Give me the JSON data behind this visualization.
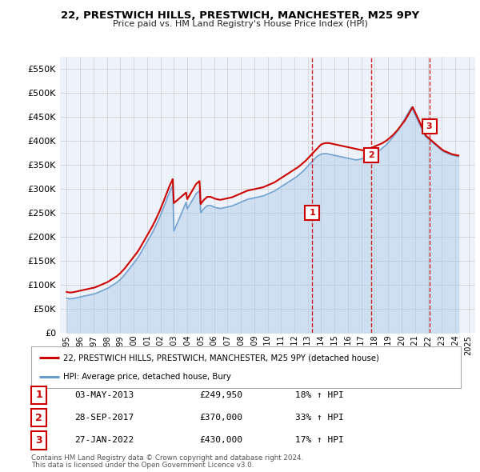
{
  "title": "22, PRESTWICH HILLS, PRESTWICH, MANCHESTER, M25 9PY",
  "subtitle": "Price paid vs. HM Land Registry's House Price Index (HPI)",
  "legend_line1": "22, PRESTWICH HILLS, PRESTWICH, MANCHESTER, M25 9PY (detached house)",
  "legend_line2": "HPI: Average price, detached house, Bury",
  "footer1": "Contains HM Land Registry data © Crown copyright and database right 2024.",
  "footer2": "This data is licensed under the Open Government Licence v3.0.",
  "transactions": [
    {
      "num": "1",
      "date": "03-MAY-2013",
      "price": "£249,950",
      "hpi": "18% ↑ HPI"
    },
    {
      "num": "2",
      "date": "28-SEP-2017",
      "price": "£370,000",
      "hpi": "33% ↑ HPI"
    },
    {
      "num": "3",
      "date": "27-JAN-2022",
      "price": "£430,000",
      "hpi": "17% ↑ HPI"
    }
  ],
  "sale_dates": [
    2013.34,
    2017.74,
    2022.07
  ],
  "sale_prices": [
    249950,
    370000,
    430000
  ],
  "red_color": "#cc0000",
  "blue_color": "#a8c8e8",
  "blue_line_color": "#6699cc",
  "grid_color": "#cccccc",
  "background_color": "#ffffff",
  "plot_bg_color": "#eef2fa",
  "ylim": [
    0,
    575000
  ],
  "yticks": [
    0,
    50000,
    100000,
    150000,
    200000,
    250000,
    300000,
    350000,
    400000,
    450000,
    500000,
    550000
  ],
  "hpi_years": [
    1995.0,
    1995.083,
    1995.167,
    1995.25,
    1995.333,
    1995.417,
    1995.5,
    1995.583,
    1995.667,
    1995.75,
    1995.833,
    1995.917,
    1996.0,
    1996.083,
    1996.167,
    1996.25,
    1996.333,
    1996.417,
    1996.5,
    1996.583,
    1996.667,
    1996.75,
    1996.833,
    1996.917,
    1997.0,
    1997.083,
    1997.167,
    1997.25,
    1997.333,
    1997.417,
    1997.5,
    1997.583,
    1997.667,
    1997.75,
    1997.833,
    1997.917,
    1998.0,
    1998.083,
    1998.167,
    1998.25,
    1998.333,
    1998.417,
    1998.5,
    1998.583,
    1998.667,
    1998.75,
    1998.833,
    1998.917,
    1999.0,
    1999.083,
    1999.167,
    1999.25,
    1999.333,
    1999.417,
    1999.5,
    1999.583,
    1999.667,
    1999.75,
    1999.833,
    1999.917,
    2000.0,
    2000.083,
    2000.167,
    2000.25,
    2000.333,
    2000.417,
    2000.5,
    2000.583,
    2000.667,
    2000.75,
    2000.833,
    2000.917,
    2001.0,
    2001.083,
    2001.167,
    2001.25,
    2001.333,
    2001.417,
    2001.5,
    2001.583,
    2001.667,
    2001.75,
    2001.833,
    2001.917,
    2002.0,
    2002.083,
    2002.167,
    2002.25,
    2002.333,
    2002.417,
    2002.5,
    2002.583,
    2002.667,
    2002.75,
    2002.833,
    2002.917,
    2003.0,
    2003.083,
    2003.167,
    2003.25,
    2003.333,
    2003.417,
    2003.5,
    2003.583,
    2003.667,
    2003.75,
    2003.833,
    2003.917,
    2004.0,
    2004.083,
    2004.167,
    2004.25,
    2004.333,
    2004.417,
    2004.5,
    2004.583,
    2004.667,
    2004.75,
    2004.833,
    2004.917,
    2005.0,
    2005.083,
    2005.167,
    2005.25,
    2005.333,
    2005.417,
    2005.5,
    2005.583,
    2005.667,
    2005.75,
    2005.833,
    2005.917,
    2006.0,
    2006.083,
    2006.167,
    2006.25,
    2006.333,
    2006.417,
    2006.5,
    2006.583,
    2006.667,
    2006.75,
    2006.833,
    2006.917,
    2007.0,
    2007.083,
    2007.167,
    2007.25,
    2007.333,
    2007.417,
    2007.5,
    2007.583,
    2007.667,
    2007.75,
    2007.833,
    2007.917,
    2008.0,
    2008.083,
    2008.167,
    2008.25,
    2008.333,
    2008.417,
    2008.5,
    2008.583,
    2008.667,
    2008.75,
    2008.833,
    2008.917,
    2009.0,
    2009.083,
    2009.167,
    2009.25,
    2009.333,
    2009.417,
    2009.5,
    2009.583,
    2009.667,
    2009.75,
    2009.833,
    2009.917,
    2010.0,
    2010.083,
    2010.167,
    2010.25,
    2010.333,
    2010.417,
    2010.5,
    2010.583,
    2010.667,
    2010.75,
    2010.833,
    2010.917,
    2011.0,
    2011.083,
    2011.167,
    2011.25,
    2011.333,
    2011.417,
    2011.5,
    2011.583,
    2011.667,
    2011.75,
    2011.833,
    2011.917,
    2012.0,
    2012.083,
    2012.167,
    2012.25,
    2012.333,
    2012.417,
    2012.5,
    2012.583,
    2012.667,
    2012.75,
    2012.833,
    2012.917,
    2013.0,
    2013.083,
    2013.167,
    2013.25,
    2013.333,
    2013.417,
    2013.5,
    2013.583,
    2013.667,
    2013.75,
    2013.833,
    2013.917,
    2014.0,
    2014.083,
    2014.167,
    2014.25,
    2014.333,
    2014.417,
    2014.5,
    2014.583,
    2014.667,
    2014.75,
    2014.833,
    2014.917,
    2015.0,
    2015.083,
    2015.167,
    2015.25,
    2015.333,
    2015.417,
    2015.5,
    2015.583,
    2015.667,
    2015.75,
    2015.833,
    2015.917,
    2016.0,
    2016.083,
    2016.167,
    2016.25,
    2016.333,
    2016.417,
    2016.5,
    2016.583,
    2016.667,
    2016.75,
    2016.833,
    2016.917,
    2017.0,
    2017.083,
    2017.167,
    2017.25,
    2017.333,
    2017.417,
    2017.5,
    2017.583,
    2017.667,
    2017.75,
    2017.833,
    2017.917,
    2018.0,
    2018.083,
    2018.167,
    2018.25,
    2018.333,
    2018.417,
    2018.5,
    2018.583,
    2018.667,
    2018.75,
    2018.833,
    2018.917,
    2019.0,
    2019.083,
    2019.167,
    2019.25,
    2019.333,
    2019.417,
    2019.5,
    2019.583,
    2019.667,
    2019.75,
    2019.833,
    2019.917,
    2020.0,
    2020.083,
    2020.167,
    2020.25,
    2020.333,
    2020.417,
    2020.5,
    2020.583,
    2020.667,
    2020.75,
    2020.833,
    2020.917,
    2021.0,
    2021.083,
    2021.167,
    2021.25,
    2021.333,
    2021.417,
    2021.5,
    2021.583,
    2021.667,
    2021.75,
    2021.833,
    2021.917,
    2022.0,
    2022.083,
    2022.167,
    2022.25,
    2022.333,
    2022.417,
    2022.5,
    2022.583,
    2022.667,
    2022.75,
    2022.833,
    2022.917,
    2023.0,
    2023.083,
    2023.167,
    2023.25,
    2023.333,
    2023.417,
    2023.5,
    2023.583,
    2023.667,
    2023.75,
    2023.833,
    2023.917,
    2024.0,
    2024.083,
    2024.167,
    2024.25
  ],
  "hpi_values": [
    72000,
    71500,
    71000,
    70800,
    71000,
    71200,
    71500,
    72000,
    72500,
    73000,
    73500,
    74000,
    74500,
    75000,
    75500,
    76000,
    76500,
    77000,
    77500,
    78000,
    78500,
    79000,
    79500,
    80000,
    80500,
    81200,
    82000,
    83000,
    84000,
    85000,
    86000,
    87000,
    88000,
    89000,
    90000,
    91000,
    92000,
    93000,
    94500,
    96000,
    97500,
    99000,
    100500,
    102000,
    103500,
    105000,
    107000,
    109000,
    111000,
    113500,
    116000,
    118500,
    121000,
    124000,
    127000,
    130000,
    133000,
    136000,
    139000,
    142000,
    145000,
    148000,
    151000,
    154000,
    157500,
    161000,
    165000,
    169000,
    173000,
    177000,
    181000,
    185000,
    189000,
    193000,
    197000,
    201000,
    205500,
    210000,
    214500,
    219000,
    224000,
    229000,
    234000,
    239000,
    244500,
    250000,
    256000,
    262000,
    268000,
    274000,
    280000,
    286000,
    292000,
    297000,
    302000,
    307000,
    212000,
    217000,
    222500,
    228000,
    233500,
    239000,
    244500,
    250000,
    255500,
    261000,
    266500,
    272000,
    258000,
    262000,
    266000,
    270000,
    274000,
    278000,
    282000,
    286000,
    290000,
    292000,
    294000,
    296000,
    250000,
    253000,
    256000,
    259000,
    261000,
    263000,
    265000,
    265000,
    265000,
    265000,
    264000,
    263000,
    262000,
    261000,
    260500,
    260000,
    259500,
    259000,
    259000,
    259500,
    260000,
    260500,
    261000,
    261500,
    262000,
    262500,
    263000,
    263500,
    264000,
    265000,
    266000,
    267000,
    268000,
    269000,
    270000,
    271000,
    272000,
    273000,
    274000,
    275000,
    276000,
    277000,
    278000,
    278500,
    279000,
    279500,
    280000,
    280500,
    281000,
    281500,
    282000,
    282500,
    283000,
    283500,
    284000,
    284500,
    285000,
    286000,
    287000,
    288000,
    289000,
    290000,
    291000,
    292000,
    293000,
    294000,
    295000,
    296500,
    298000,
    299500,
    301000,
    302500,
    304000,
    305500,
    307000,
    308500,
    310000,
    311500,
    313000,
    314500,
    316000,
    317500,
    319000,
    320500,
    322000,
    323500,
    325000,
    327000,
    329000,
    331000,
    333000,
    335000,
    337000,
    339500,
    342000,
    344500,
    347000,
    349500,
    352000,
    354500,
    357000,
    359500,
    362000,
    364500,
    367000,
    368500,
    370000,
    371000,
    372000,
    372500,
    373000,
    373000,
    373000,
    373000,
    372500,
    372000,
    371500,
    371000,
    370500,
    370000,
    369500,
    369000,
    368500,
    368000,
    367500,
    367000,
    366500,
    366000,
    365500,
    365000,
    364500,
    364000,
    363500,
    363000,
    362500,
    362000,
    361500,
    361000,
    360500,
    360000,
    360000,
    360500,
    361000,
    361500,
    362000,
    363000,
    364000,
    365000,
    366000,
    367000,
    368000,
    369000,
    370000,
    371000,
    372000,
    373000,
    374000,
    375000,
    376500,
    378000,
    379500,
    381000,
    383000,
    385000,
    387000,
    389000,
    391000,
    393500,
    396000,
    398500,
    401000,
    404000,
    407000,
    410000,
    413000,
    416000,
    419000,
    422000,
    426000,
    430000,
    434000,
    438000,
    442000,
    446000,
    450000,
    454000,
    458000,
    462000,
    466000,
    470000,
    465000,
    460000,
    455000,
    450000,
    445000,
    440000,
    435000,
    430000,
    425000,
    420000,
    415000,
    410000,
    408000,
    406000,
    404000,
    402000,
    400000,
    398000,
    396000,
    394000,
    392000,
    390000,
    388000,
    386000,
    384000,
    382000,
    380000,
    378500,
    377000,
    376000,
    375000,
    374000,
    373000,
    372000,
    371000,
    370000,
    369500,
    369000,
    368500,
    368000,
    367500,
    367000
  ],
  "red_values": [
    85000,
    84500,
    84000,
    83800,
    84000,
    84200,
    84500,
    85000,
    85500,
    86000,
    86500,
    87000,
    87500,
    88000,
    88500,
    89000,
    89500,
    90000,
    90500,
    91000,
    91500,
    92000,
    92500,
    93000,
    93500,
    94200,
    95000,
    96000,
    97000,
    98000,
    99000,
    100000,
    101000,
    102000,
    103000,
    104000,
    105000,
    106000,
    107500,
    109000,
    110500,
    112000,
    113500,
    115000,
    116500,
    118000,
    120000,
    122000,
    124000,
    126500,
    129000,
    131500,
    134000,
    137000,
    140000,
    143000,
    146000,
    149000,
    152000,
    155000,
    158000,
    161000,
    164000,
    167000,
    170500,
    174000,
    178000,
    182000,
    186000,
    190000,
    194000,
    198000,
    202000,
    206000,
    210000,
    214000,
    218500,
    223000,
    227500,
    232000,
    237000,
    242000,
    247000,
    252000,
    257500,
    263000,
    269000,
    275000,
    281000,
    287000,
    293000,
    299000,
    305000,
    310000,
    315000,
    320000,
    270000,
    272000,
    274000,
    276000,
    278000,
    280000,
    282000,
    284000,
    286000,
    288000,
    290000,
    292000,
    278000,
    282000,
    286000,
    290000,
    294000,
    298000,
    302000,
    306000,
    310000,
    312000,
    314000,
    316000,
    268000,
    271000,
    274000,
    277000,
    279000,
    281000,
    283000,
    283000,
    283000,
    283000,
    282000,
    281000,
    280000,
    279000,
    278500,
    278000,
    277500,
    277000,
    277000,
    277500,
    278000,
    278500,
    279000,
    279500,
    280000,
    280500,
    281000,
    281500,
    282000,
    283000,
    284000,
    285000,
    286000,
    287000,
    288000,
    289000,
    290000,
    291000,
    292000,
    293000,
    294000,
    295000,
    296000,
    296500,
    297000,
    297500,
    298000,
    298500,
    299000,
    299500,
    300000,
    300500,
    301000,
    301500,
    302000,
    302500,
    303000,
    304000,
    305000,
    306000,
    307000,
    308000,
    309000,
    310000,
    311000,
    312000,
    313000,
    314500,
    316000,
    317500,
    319000,
    320500,
    322000,
    323500,
    325000,
    326500,
    328000,
    329500,
    331000,
    332500,
    334000,
    335500,
    337000,
    338500,
    340000,
    341500,
    343000,
    344500,
    346000,
    348000,
    350000,
    352000,
    354000,
    356000,
    358000,
    360500,
    363000,
    365500,
    368000,
    370500,
    373000,
    375500,
    378000,
    380500,
    383000,
    385500,
    388000,
    390000,
    392000,
    393000,
    394000,
    394500,
    395000,
    395000,
    395000,
    395000,
    394500,
    394000,
    393500,
    393000,
    392500,
    392000,
    391500,
    391000,
    390500,
    390000,
    389500,
    389000,
    388500,
    388000,
    387500,
    387000,
    386500,
    386000,
    385500,
    385000,
    384500,
    384000,
    383500,
    383000,
    382500,
    382000,
    381500,
    381000,
    380500,
    380000,
    380000,
    380500,
    381000,
    381500,
    382000,
    383000,
    384000,
    385000,
    386000,
    387000,
    388000,
    389000,
    390000,
    391000,
    392000,
    393000,
    394000,
    395000,
    396500,
    398000,
    399500,
    401000,
    403000,
    405000,
    407000,
    409000,
    411000,
    413500,
    416000,
    418500,
    421000,
    424000,
    427000,
    430000,
    433000,
    436000,
    439000,
    442000,
    446000,
    450000,
    454000,
    458000,
    462000,
    466000,
    470000,
    465000,
    460000,
    455000,
    450000,
    445000,
    440000,
    435000,
    430000,
    425000,
    420000,
    415000,
    410000,
    408000,
    406000,
    404000,
    402000,
    400000,
    398000,
    396000,
    394000,
    392000,
    390000,
    388000,
    386000,
    384000,
    382000,
    380500,
    379000,
    378000,
    377000,
    376000,
    375000,
    374000,
    373000,
    372000,
    371500,
    371000,
    370500,
    370000,
    369500,
    369000,
    368500,
    368000,
    367500,
    367000
  ]
}
